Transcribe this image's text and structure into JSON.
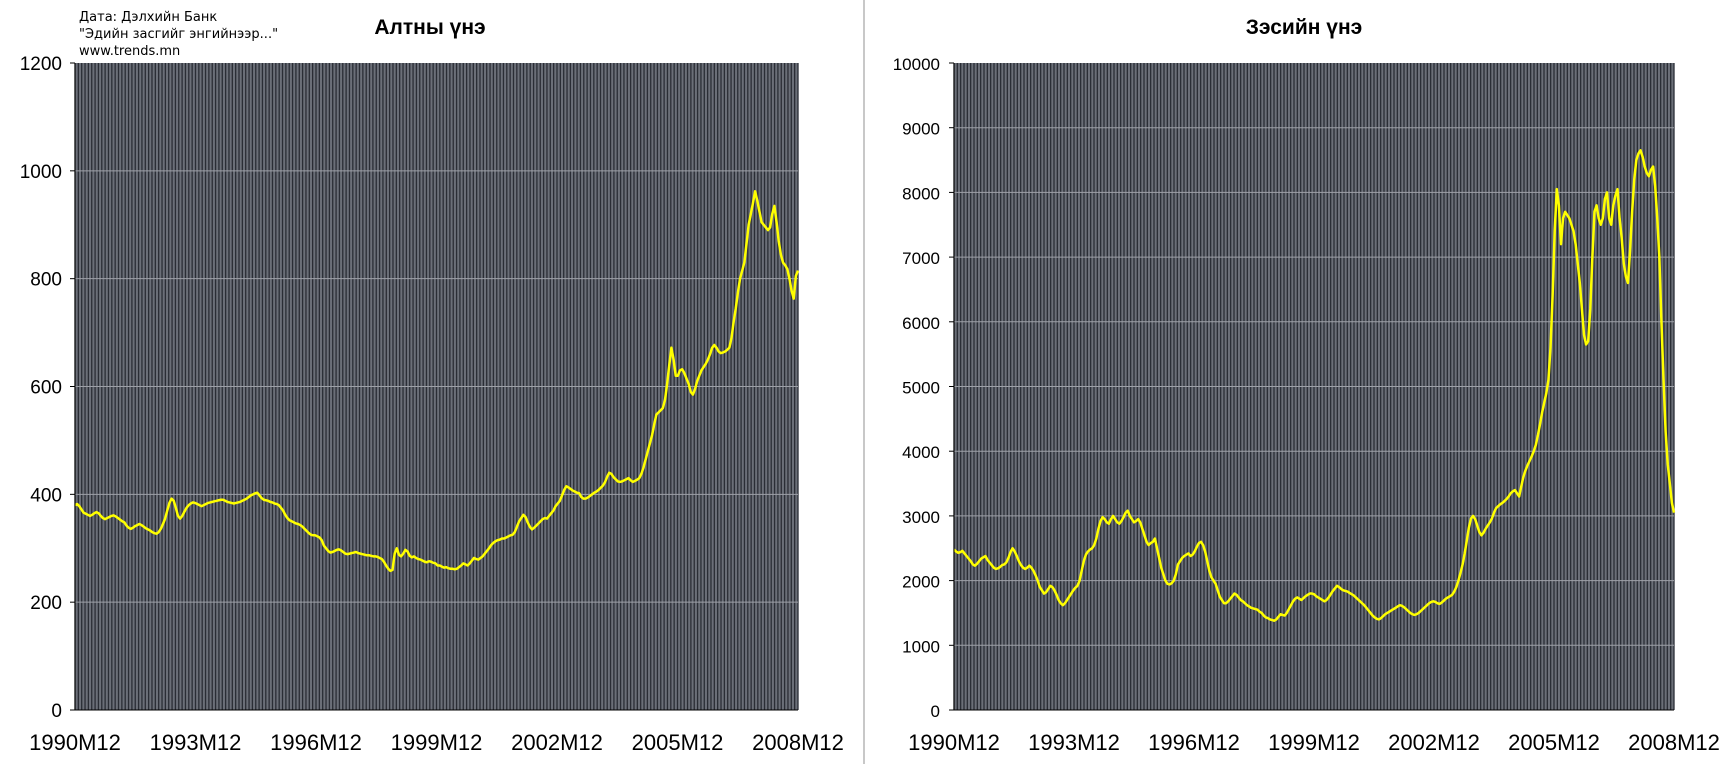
{
  "source_note": [
    "Дата: Дэлхийн Банк",
    "\"Эдийн засгийг энгийнээр...\"",
    "www.trends.mn"
  ],
  "colors": {
    "plot_background": "#6b6f78",
    "vertical_gridline": "#2a2d35",
    "horizontal_gridline": "#9ea1a8",
    "series_line": "#ffff00",
    "divider": "#c8c8c8"
  },
  "chart_data": [
    {
      "type": "line",
      "title": "Алтны үнэ",
      "xlabel": "",
      "ylabel": "",
      "ylim": [
        0,
        1200
      ],
      "yticks": [
        0,
        200,
        400,
        600,
        800,
        1000,
        1200
      ],
      "xticks": [
        "1990M12",
        "1993M12",
        "1996M12",
        "1999M12",
        "2002M12",
        "2005M12",
        "2008M12"
      ],
      "x_start": "1990M12",
      "x_end": "2008M12",
      "grid": "vertical-monthly, horizontal-major",
      "legend": "none",
      "series": [
        {
          "color": "#ffff00",
          "values": [
            380,
            382,
            378,
            372,
            366,
            364,
            362,
            360,
            362,
            365,
            367,
            365,
            360,
            356,
            354,
            356,
            358,
            360,
            361,
            359,
            356,
            353,
            350,
            348,
            342,
            338,
            336,
            338,
            341,
            343,
            345,
            343,
            340,
            337,
            335,
            333,
            330,
            328,
            327,
            330,
            336,
            345,
            355,
            370,
            384,
            392,
            388,
            375,
            360,
            355,
            360,
            368,
            375,
            380,
            383,
            385,
            384,
            382,
            380,
            378,
            380,
            382,
            384,
            385,
            386,
            387,
            388,
            389,
            390,
            390,
            388,
            386,
            385,
            384,
            383,
            384,
            385,
            386,
            388,
            390,
            392,
            395,
            398,
            400,
            402,
            403,
            398,
            393,
            390,
            389,
            388,
            386,
            385,
            383,
            382,
            380,
            375,
            370,
            362,
            356,
            352,
            350,
            348,
            346,
            345,
            343,
            340,
            336,
            332,
            328,
            325,
            324,
            324,
            322,
            320,
            315,
            305,
            300,
            295,
            292,
            293,
            295,
            297,
            298,
            296,
            293,
            290,
            289,
            290,
            291,
            292,
            293,
            291,
            290,
            289,
            288,
            287,
            287,
            286,
            285,
            285,
            284,
            282,
            280,
            275,
            268,
            262,
            258,
            260,
            290,
            300,
            288,
            285,
            290,
            297,
            294,
            286,
            283,
            285,
            282,
            280,
            279,
            277,
            275,
            274,
            276,
            275,
            273,
            272,
            268,
            268,
            266,
            264,
            265,
            263,
            262,
            262,
            261,
            262,
            265,
            268,
            272,
            270,
            268,
            272,
            277,
            282,
            280,
            279,
            282,
            285,
            290,
            295,
            300,
            306,
            310,
            313,
            315,
            316,
            318,
            318,
            320,
            322,
            324,
            325,
            330,
            340,
            350,
            356,
            362,
            358,
            348,
            340,
            335,
            338,
            342,
            346,
            350,
            354,
            356,
            355,
            360,
            365,
            370,
            378,
            383,
            388,
            398,
            408,
            415,
            413,
            410,
            407,
            405,
            403,
            402,
            395,
            392,
            392,
            394,
            397,
            400,
            403,
            405,
            408,
            412,
            416,
            422,
            432,
            440,
            438,
            432,
            428,
            424,
            423,
            424,
            426,
            428,
            430,
            426,
            423,
            425,
            427,
            430,
            438,
            450,
            465,
            480,
            495,
            510,
            530,
            548,
            552,
            556,
            560,
            575,
            605,
            640,
            672,
            650,
            620,
            620,
            630,
            632,
            625,
            615,
            605,
            590,
            585,
            595,
            610,
            620,
            630,
            636,
            642,
            650,
            660,
            672,
            677,
            672,
            665,
            662,
            663,
            665,
            668,
            672,
            690,
            720,
            745,
            775,
            800,
            815,
            830,
            865,
            900,
            920,
            940,
            962,
            945,
            925,
            905,
            900,
            895,
            890,
            895,
            920,
            935,
            905,
            870,
            845,
            830,
            825,
            818,
            800,
            778,
            763,
            805,
            815
          ]
        }
      ]
    },
    {
      "type": "line",
      "title": "Зэсийн үнэ",
      "xlabel": "",
      "ylabel": "",
      "ylim": [
        0,
        10000
      ],
      "yticks": [
        0,
        1000,
        2000,
        3000,
        4000,
        5000,
        6000,
        7000,
        8000,
        9000,
        10000
      ],
      "xticks": [
        "1990M12",
        "1993M12",
        "1996M12",
        "1999M12",
        "2002M12",
        "2005M12",
        "2008M12"
      ],
      "x_start": "1990M12",
      "x_end": "2008M12",
      "grid": "vertical-monthly, horizontal-major",
      "legend": "none",
      "series": [
        {
          "color": "#ffff00",
          "values": [
            2480,
            2450,
            2430,
            2440,
            2460,
            2420,
            2380,
            2340,
            2300,
            2250,
            2230,
            2260,
            2300,
            2340,
            2360,
            2380,
            2320,
            2280,
            2240,
            2200,
            2180,
            2190,
            2210,
            2240,
            2250,
            2280,
            2350,
            2440,
            2500,
            2450,
            2380,
            2300,
            2240,
            2200,
            2180,
            2200,
            2230,
            2200,
            2150,
            2080,
            2000,
            1900,
            1850,
            1800,
            1820,
            1870,
            1920,
            1900,
            1850,
            1780,
            1700,
            1650,
            1620,
            1650,
            1700,
            1750,
            1800,
            1850,
            1890,
            1920,
            2000,
            2150,
            2300,
            2400,
            2450,
            2480,
            2500,
            2550,
            2650,
            2800,
            2920,
            2980,
            2950,
            2900,
            2880,
            2950,
            3000,
            2950,
            2900,
            2880,
            2920,
            2980,
            3050,
            3080,
            3000,
            2950,
            2900,
            2920,
            2950,
            2900,
            2800,
            2700,
            2600,
            2550,
            2580,
            2600,
            2650,
            2500,
            2350,
            2200,
            2100,
            2000,
            1950,
            1940,
            1960,
            2000,
            2100,
            2250,
            2300,
            2350,
            2380,
            2400,
            2420,
            2380,
            2400,
            2450,
            2520,
            2580,
            2600,
            2550,
            2450,
            2300,
            2150,
            2050,
            2000,
            1950,
            1850,
            1750,
            1700,
            1650,
            1650,
            1680,
            1720,
            1760,
            1800,
            1780,
            1740,
            1700,
            1680,
            1650,
            1620,
            1600,
            1580,
            1570,
            1560,
            1550,
            1520,
            1500,
            1460,
            1430,
            1420,
            1400,
            1390,
            1380,
            1400,
            1440,
            1480,
            1470,
            1460,
            1500,
            1560,
            1620,
            1680,
            1720,
            1740,
            1720,
            1700,
            1730,
            1760,
            1780,
            1800,
            1800,
            1790,
            1760,
            1740,
            1720,
            1700,
            1680,
            1700,
            1740,
            1790,
            1840,
            1880,
            1920,
            1900,
            1870,
            1850,
            1840,
            1830,
            1810,
            1790,
            1770,
            1740,
            1710,
            1680,
            1650,
            1620,
            1580,
            1540,
            1500,
            1460,
            1430,
            1410,
            1400,
            1420,
            1450,
            1480,
            1500,
            1520,
            1540,
            1560,
            1580,
            1600,
            1620,
            1610,
            1590,
            1560,
            1530,
            1500,
            1480,
            1470,
            1480,
            1500,
            1530,
            1560,
            1590,
            1620,
            1650,
            1670,
            1680,
            1670,
            1650,
            1640,
            1660,
            1690,
            1720,
            1740,
            1760,
            1780,
            1830,
            1900,
            2000,
            2120,
            2250,
            2420,
            2620,
            2820,
            2960,
            3000,
            2950,
            2850,
            2750,
            2700,
            2740,
            2800,
            2850,
            2900,
            2960,
            3050,
            3120,
            3150,
            3180,
            3200,
            3230,
            3260,
            3300,
            3350,
            3380,
            3400,
            3350,
            3300,
            3450,
            3600,
            3700,
            3780,
            3850,
            3920,
            4000,
            4100,
            4250,
            4420,
            4600,
            4750,
            4900,
            5100,
            5600,
            6400,
            7400,
            8050,
            7800,
            7200,
            7600,
            7700,
            7650,
            7600,
            7500,
            7400,
            7200,
            6900,
            6600,
            6200,
            5800,
            5650,
            5700,
            6200,
            7000,
            7700,
            7800,
            7600,
            7500,
            7600,
            7900,
            8000,
            7600,
            7500,
            7800,
            7950,
            8050,
            7600,
            7300,
            6900,
            6700,
            6600,
            7100,
            7700,
            8200,
            8500,
            8600,
            8650,
            8550,
            8400,
            8300,
            8250,
            8350,
            8400,
            8100,
            7600,
            7000,
            6000,
            5100,
            4300,
            3800,
            3500,
            3200,
            3050
          ]
        }
      ]
    }
  ]
}
